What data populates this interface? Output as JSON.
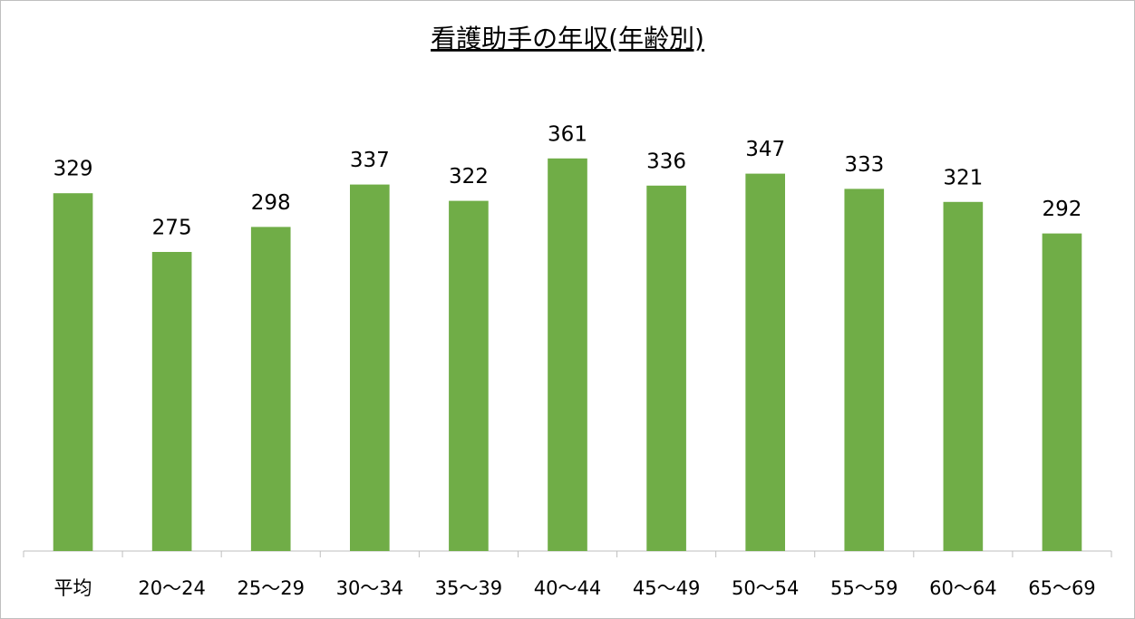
{
  "chart_data": {
    "type": "bar",
    "title": "看護助手の年収(年齢別)",
    "categories": [
      "平均",
      "20〜24",
      "25〜29",
      "30〜34",
      "35〜39",
      "40〜44",
      "45〜49",
      "50〜54",
      "55〜59",
      "60〜64",
      "65〜69"
    ],
    "values": [
      329,
      275,
      298,
      337,
      322,
      361,
      336,
      347,
      333,
      321,
      292
    ],
    "color": "#70ad47",
    "ylim": [
      0,
      400
    ],
    "grid": false
  }
}
